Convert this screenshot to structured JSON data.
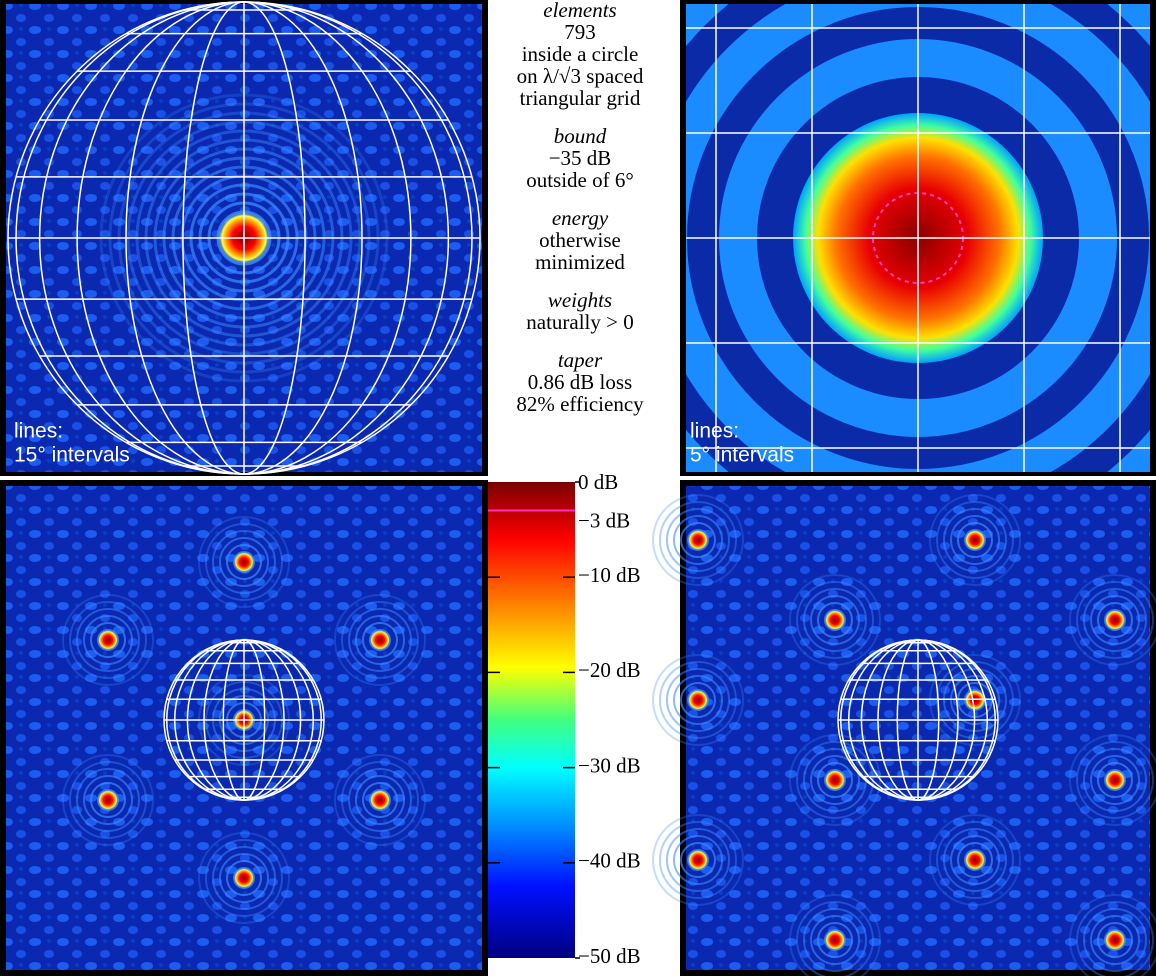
{
  "annotations": [
    {
      "heading": "elements",
      "lines": [
        "793",
        "inside a circle",
        "on λ/√3 spaced",
        "triangular grid"
      ]
    },
    {
      "heading": "bound",
      "lines": [
        "−35 dB",
        "outside of 6°"
      ]
    },
    {
      "heading": "energy",
      "lines": [
        "otherwise",
        "minimized"
      ]
    },
    {
      "heading": "weights",
      "lines": [
        "naturally > 0"
      ]
    },
    {
      "heading": "taper",
      "lines": [
        "0.86 dB loss",
        "82% efficiency"
      ]
    }
  ],
  "panels": [
    {
      "label": [
        "lines:",
        "15° intervals"
      ]
    },
    {
      "label": [
        "lines:",
        "5° intervals"
      ]
    }
  ],
  "colorbar": {
    "range": [
      -50,
      0
    ],
    "ticks": [
      {
        "value": 0,
        "label": "0 dB"
      },
      {
        "value": -3,
        "label": "−3 dB"
      },
      {
        "value": -10,
        "label": "−10 dB"
      },
      {
        "value": -20,
        "label": "−20 dB"
      },
      {
        "value": -30,
        "label": "−30 dB"
      },
      {
        "value": -40,
        "label": "−40 dB"
      },
      {
        "value": -50,
        "label": "−50 dB"
      }
    ]
  }
}
